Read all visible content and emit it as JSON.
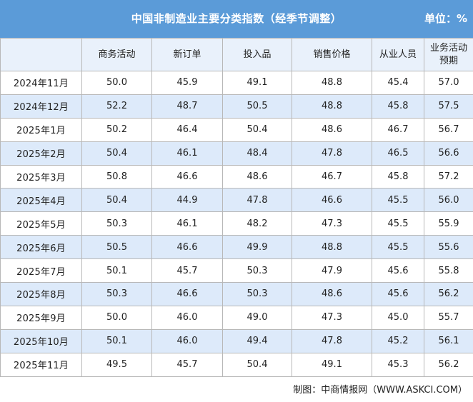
{
  "title": "中国非制造业主要分类指数（经季节调整）",
  "unit": "单位：%",
  "footer": "制图：中商情报网（WWW.ASKCI.COM）",
  "chart_data": {
    "type": "table",
    "columns": [
      "",
      "商务活动",
      "新订单",
      "投入品",
      "销售价格",
      "从业人员",
      "业务活动预期"
    ],
    "rows": [
      [
        "2024年11月",
        "50.0",
        "45.9",
        "49.1",
        "48.8",
        "45.4",
        "57.0"
      ],
      [
        "2024年12月",
        "52.2",
        "48.7",
        "50.5",
        "48.8",
        "45.8",
        "57.5"
      ],
      [
        "2025年1月",
        "50.2",
        "46.4",
        "50.4",
        "48.6",
        "46.7",
        "56.7"
      ],
      [
        "2025年2月",
        "50.4",
        "46.1",
        "48.4",
        "47.8",
        "46.5",
        "56.6"
      ],
      [
        "2025年3月",
        "50.8",
        "46.6",
        "48.6",
        "46.7",
        "45.8",
        "57.2"
      ],
      [
        "2025年4月",
        "50.4",
        "44.9",
        "47.8",
        "46.6",
        "45.5",
        "56.0"
      ],
      [
        "2025年5月",
        "50.3",
        "46.1",
        "48.2",
        "47.3",
        "45.5",
        "55.9"
      ],
      [
        "2025年6月",
        "50.5",
        "46.6",
        "49.9",
        "48.8",
        "45.5",
        "55.6"
      ],
      [
        "2025年7月",
        "50.1",
        "45.7",
        "50.3",
        "47.9",
        "45.6",
        "55.8"
      ],
      [
        "2025年8月",
        "50.3",
        "46.6",
        "50.3",
        "48.6",
        "45.6",
        "56.2"
      ],
      [
        "2025年9月",
        "50.0",
        "46.0",
        "49.0",
        "47.3",
        "45.0",
        "55.7"
      ],
      [
        "2025年10月",
        "50.1",
        "46.0",
        "49.4",
        "47.8",
        "45.2",
        "56.1"
      ],
      [
        "2025年11月",
        "49.5",
        "45.7",
        "50.4",
        "49.1",
        "45.3",
        "56.2"
      ]
    ]
  },
  "colors": {
    "title_bar": "#5b9bd8",
    "header_bg": "#e9f1fb",
    "alt_row_bg": "#ddeafa",
    "border": "#b8b8b8"
  }
}
